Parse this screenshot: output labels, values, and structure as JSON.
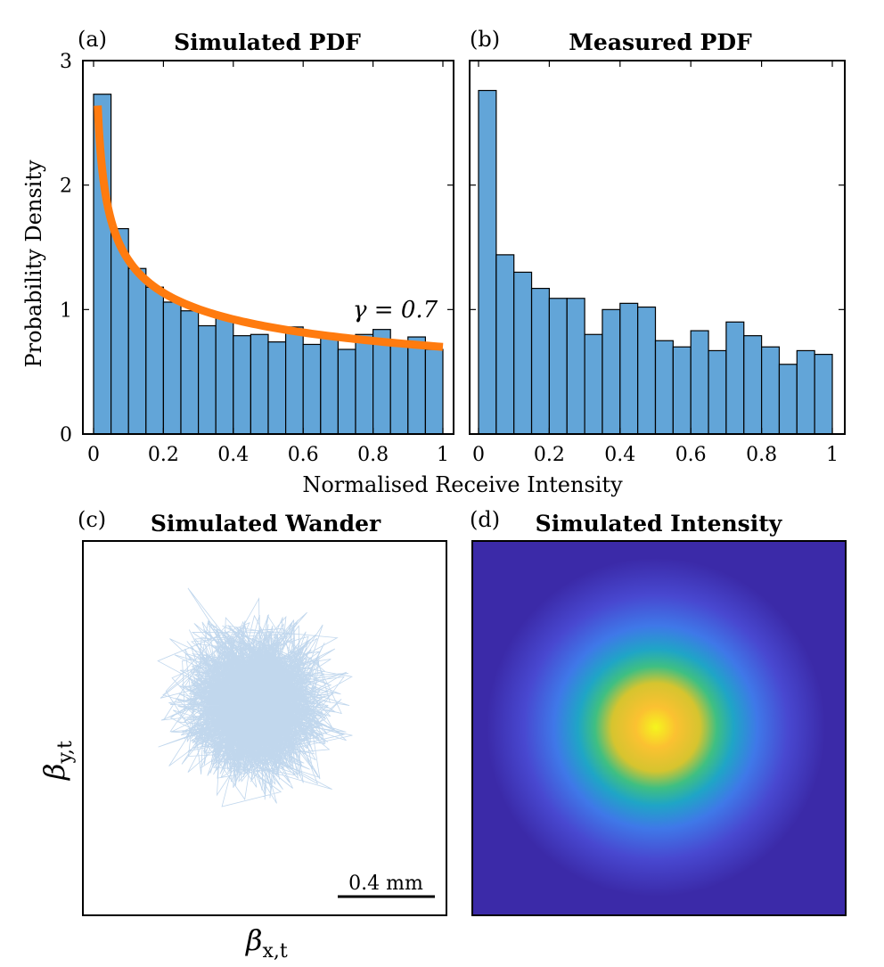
{
  "colors": {
    "bar_fill": "#62a5d8",
    "fit_line": "#ff7b0f",
    "wander_line": "#1f6fbf",
    "heat_low": "#3b2aa8",
    "heat_high": "#f5f51d"
  },
  "chart_data": [
    {
      "panel_label": "(a)",
      "type": "bar",
      "title": "Simulated PDF",
      "xlabel": "Normalised Receive Intensity",
      "ylabel": "Probability Density",
      "xlim": [
        0,
        1
      ],
      "ylim": [
        0,
        3
      ],
      "xticks": [
        "0",
        "0.2",
        "0.4",
        "0.6",
        "0.8",
        "1"
      ],
      "yticks": [
        "0",
        "1",
        "2",
        "3"
      ],
      "bin_width": 0.05,
      "values": [
        2.73,
        1.65,
        1.33,
        1.18,
        1.06,
        0.99,
        0.87,
        0.93,
        0.79,
        0.8,
        0.74,
        0.86,
        0.72,
        0.77,
        0.68,
        0.8,
        0.84,
        0.72,
        0.78,
        0.68
      ],
      "fit": {
        "name": "fit",
        "gamma_label": "γ = 0.7",
        "gamma": 0.7
      }
    },
    {
      "panel_label": "(b)",
      "type": "bar",
      "title": "Measured PDF",
      "xlim": [
        0,
        1
      ],
      "ylim": [
        0,
        3
      ],
      "xticks": [
        "0",
        "0.2",
        "0.4",
        "0.6",
        "0.8",
        "1"
      ],
      "bin_width": 0.05,
      "values": [
        2.76,
        1.44,
        1.3,
        1.17,
        1.09,
        1.09,
        0.8,
        1.0,
        1.05,
        1.02,
        0.75,
        0.7,
        0.83,
        0.67,
        0.9,
        0.79,
        0.7,
        0.56,
        0.67,
        0.64
      ]
    },
    {
      "panel_label": "(c)",
      "type": "line",
      "title": "Simulated Wander",
      "xlabel": "β",
      "xlabel_sub": "x,t",
      "ylabel": "β",
      "ylabel_sub": "y,t",
      "scale_bar_label": "0.4 mm"
    },
    {
      "panel_label": "(d)",
      "type": "heatmap",
      "title": "Simulated Intensity"
    }
  ]
}
